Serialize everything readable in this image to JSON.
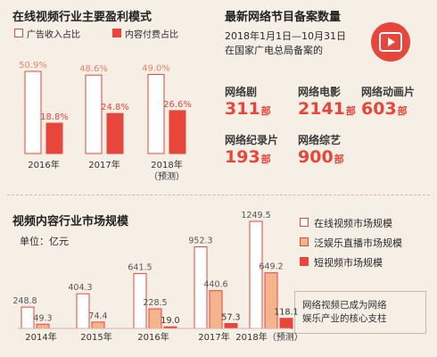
{
  "colors": {
    "accent": "#e8463a",
    "white_bar_border": "#e8463a",
    "orange": "#f4b48e",
    "text_red": "#e8463a"
  },
  "chart_data": [
    {
      "type": "bar",
      "title": "在线视频行业主要盈利模式",
      "categories": [
        "2016年",
        "2017年",
        "2018年"
      ],
      "category_notes": [
        "",
        "",
        "（预测）"
      ],
      "series": [
        {
          "name": "广告收入占比",
          "values": [
            50.9,
            48.6,
            49.0
          ],
          "labels": [
            "50.9%",
            "48.6%",
            "49.0%"
          ]
        },
        {
          "name": "内容付费占比",
          "values": [
            18.8,
            24.8,
            26.6
          ],
          "labels": [
            "18.8%",
            "24.8%",
            "26.6%"
          ]
        }
      ],
      "ylim": [
        0,
        60
      ],
      "legend": "top"
    },
    {
      "type": "table",
      "title": "最新网络节目备案数量",
      "subtitle_lines": [
        "2018年1月1日—10月31日",
        "在国家广电总局备案的"
      ],
      "unit": "部",
      "items": [
        {
          "name": "网络剧",
          "value": "311"
        },
        {
          "name": "网络电影",
          "value": "2141"
        },
        {
          "name": "网络动画片",
          "value": "603"
        },
        {
          "name": "网络纪录片",
          "value": "193"
        },
        {
          "name": "网络综艺",
          "value": "900"
        }
      ]
    },
    {
      "type": "bar",
      "title": "视频内容行业市场规模",
      "unit_label": "单位：亿元",
      "categories": [
        "2014年",
        "2015年",
        "2016年",
        "2017年",
        "2018年（预测）"
      ],
      "series": [
        {
          "name": "在线视频市场规模",
          "values": [
            248.8,
            404.3,
            641.5,
            952.3,
            1249.5
          ],
          "labels": [
            "248.8",
            "404.3",
            "641.5",
            "952.3",
            "1249.5"
          ]
        },
        {
          "name": "泛娱乐直播市场规模",
          "values": [
            49.3,
            74.4,
            228.5,
            440.6,
            649.2
          ],
          "labels": [
            "49.3",
            "74.4",
            "228.5",
            "440.6",
            "649.2"
          ]
        },
        {
          "name": "短视频市场规模",
          "values": [
            null,
            null,
            19.0,
            57.3,
            118.1
          ],
          "labels": [
            "",
            "",
            "19.0",
            "57.3",
            "118.1"
          ]
        }
      ],
      "ylim": [
        0,
        1300
      ],
      "legend": "right",
      "note_lines": [
        "网络视频已成为网络",
        "娱乐产业的核心支柱"
      ]
    }
  ]
}
